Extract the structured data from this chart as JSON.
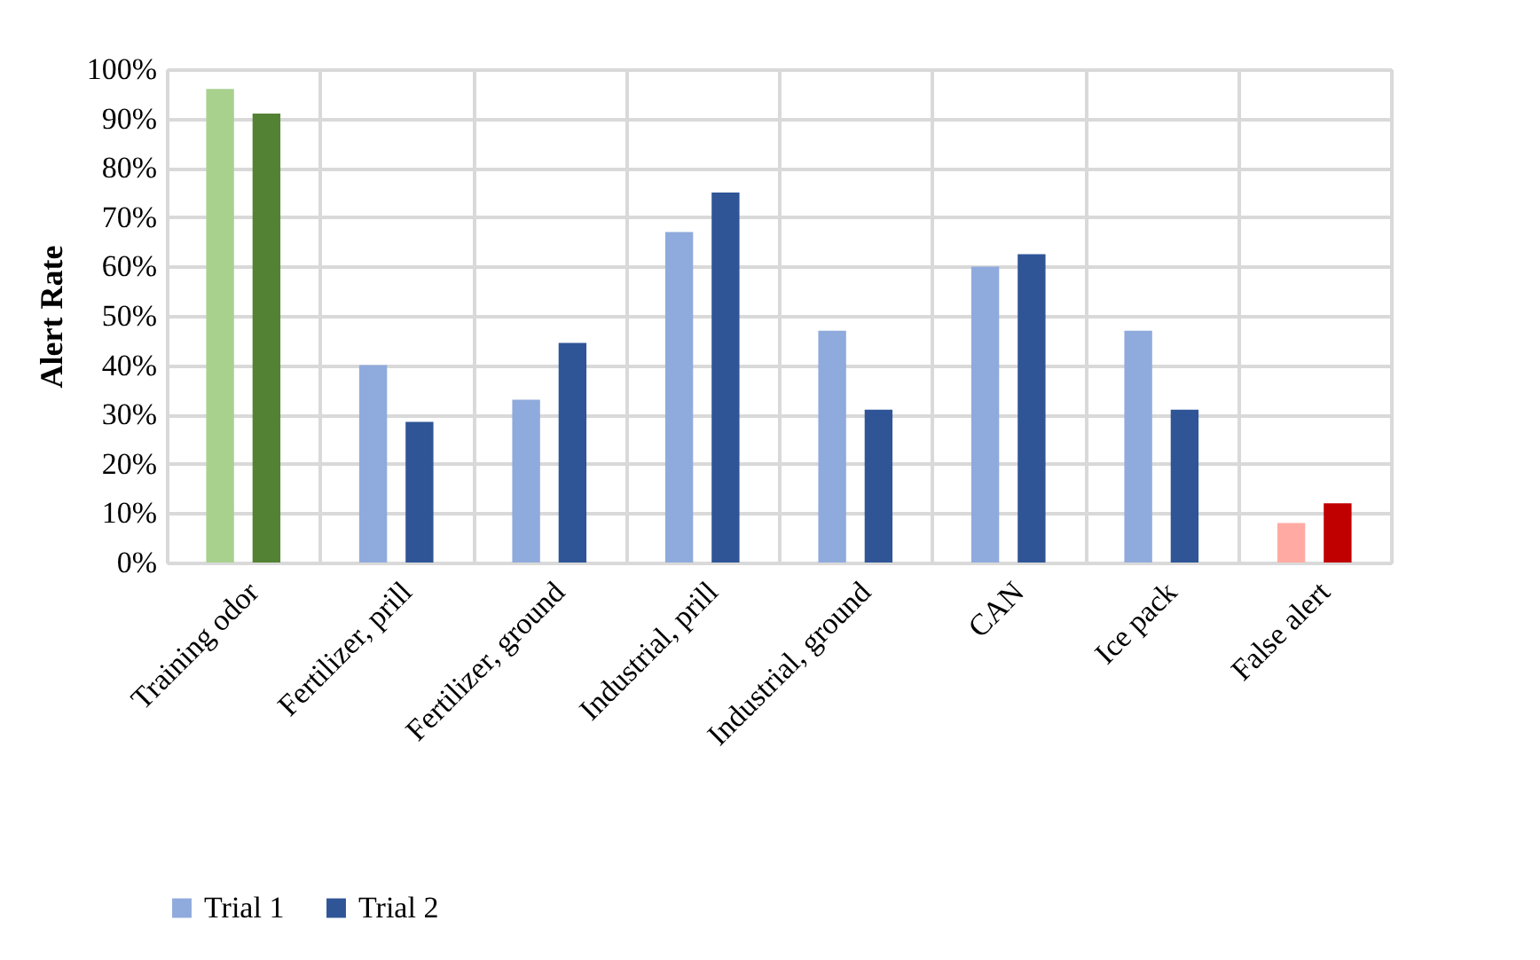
{
  "chart_data": {
    "type": "bar",
    "ylabel": "Alert Rate",
    "categories": [
      "Training odor",
      "Fertilizer, prill",
      "Fertilizer, ground",
      "Industrial, prill",
      "Industrial, ground",
      "CAN",
      "Ice pack",
      "False alert"
    ],
    "series": [
      {
        "name": "Trial 1",
        "color": "#8faadc",
        "colors": [
          "#a9d18e",
          "#8faadc",
          "#8faadc",
          "#8faadc",
          "#8faadc",
          "#8faadc",
          "#8faadc",
          "#ffaba3"
        ],
        "values": [
          96,
          40,
          33,
          67,
          47,
          60,
          47,
          8
        ]
      },
      {
        "name": "Trial 2",
        "color": "#2f5597",
        "colors": [
          "#548235",
          "#2f5597",
          "#2f5597",
          "#2f5597",
          "#2f5597",
          "#2f5597",
          "#2f5597",
          "#c00000"
        ],
        "values": [
          91,
          28.5,
          44.5,
          75,
          31,
          62.5,
          31,
          12
        ]
      }
    ],
    "ylim": [
      0,
      100
    ],
    "yticks": [
      {
        "value": 0,
        "label": "0%"
      },
      {
        "value": 10,
        "label": "10%"
      },
      {
        "value": 20,
        "label": "20%"
      },
      {
        "value": 30,
        "label": "30%"
      },
      {
        "value": 40,
        "label": "40%"
      },
      {
        "value": 50,
        "label": "50%"
      },
      {
        "value": 60,
        "label": "60%"
      },
      {
        "value": 70,
        "label": "70%"
      },
      {
        "value": 80,
        "label": "80%"
      },
      {
        "value": 90,
        "label": "90%"
      },
      {
        "value": 100,
        "label": "100%"
      }
    ],
    "grid": true,
    "legend": "bottom"
  }
}
